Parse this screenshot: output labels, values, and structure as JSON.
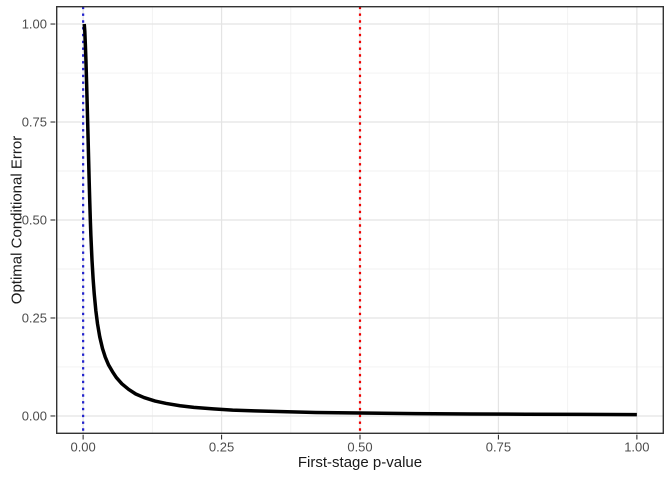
{
  "chart_data": {
    "type": "line",
    "title": "",
    "xlabel": "First-stage p-value",
    "ylabel": "Optimal Conditional Error",
    "x_tick_labels": [
      "0.00",
      "0.25",
      "0.50",
      "0.75",
      "1.00"
    ],
    "y_tick_labels": [
      "0.00",
      "0.25",
      "0.50",
      "0.75",
      "1.00"
    ],
    "x_tick_values": [
      0,
      0.25,
      0.5,
      0.75,
      1
    ],
    "y_tick_values": [
      0,
      0.25,
      0.5,
      0.75,
      1
    ],
    "xlim": [
      -0.049,
      1.049
    ],
    "ylim": [
      -0.046,
      1.046
    ],
    "grid": {
      "major": true,
      "minor": true,
      "minor_step": 0.125
    },
    "legend": "none",
    "series": [
      {
        "name": "optimal-conditional-error-curve",
        "color": "#000000",
        "width": 3.5,
        "points": [
          [
            0.002,
            1.0
          ],
          [
            0.003,
            0.982
          ],
          [
            0.004,
            0.948
          ],
          [
            0.005,
            0.91
          ],
          [
            0.006,
            0.862
          ],
          [
            0.007,
            0.812
          ],
          [
            0.008,
            0.76
          ],
          [
            0.009,
            0.705
          ],
          [
            0.01,
            0.65
          ],
          [
            0.011,
            0.595
          ],
          [
            0.012,
            0.545
          ],
          [
            0.013,
            0.5
          ],
          [
            0.014,
            0.46
          ],
          [
            0.016,
            0.398
          ],
          [
            0.018,
            0.35
          ],
          [
            0.02,
            0.312
          ],
          [
            0.023,
            0.268
          ],
          [
            0.026,
            0.235
          ],
          [
            0.03,
            0.202
          ],
          [
            0.035,
            0.172
          ],
          [
            0.04,
            0.15
          ],
          [
            0.046,
            0.13
          ],
          [
            0.053,
            0.113
          ],
          [
            0.06,
            0.098
          ],
          [
            0.07,
            0.082
          ],
          [
            0.082,
            0.068
          ],
          [
            0.095,
            0.056
          ],
          [
            0.11,
            0.047
          ],
          [
            0.13,
            0.038
          ],
          [
            0.15,
            0.032
          ],
          [
            0.175,
            0.026
          ],
          [
            0.2,
            0.022
          ],
          [
            0.235,
            0.018
          ],
          [
            0.27,
            0.015
          ],
          [
            0.31,
            0.013
          ],
          [
            0.36,
            0.011
          ],
          [
            0.42,
            0.009
          ],
          [
            0.5,
            0.0075
          ],
          [
            0.6,
            0.006
          ],
          [
            0.7,
            0.005
          ],
          [
            0.8,
            0.0045
          ],
          [
            0.9,
            0.004
          ],
          [
            1.0,
            0.0035
          ]
        ]
      }
    ],
    "reference_lines": [
      {
        "name": "first-stage-zero-vline",
        "orientation": "vertical",
        "x": 0.0,
        "color": "#2222CC",
        "style": "dotted"
      },
      {
        "name": "first-stage-half-vline",
        "orientation": "vertical",
        "x": 0.5,
        "color": "#EE0000",
        "style": "dotted"
      }
    ],
    "colors": {
      "background": "#FFFFFF",
      "panel_background": "#FFFFFF",
      "panel_border": "#333333",
      "grid_major": "#E4E4E4",
      "grid_minor": "#F1F1F1",
      "tick": "#333333",
      "tick_label": "#4D4D4D",
      "axis_title": "#1A1A1A"
    }
  }
}
